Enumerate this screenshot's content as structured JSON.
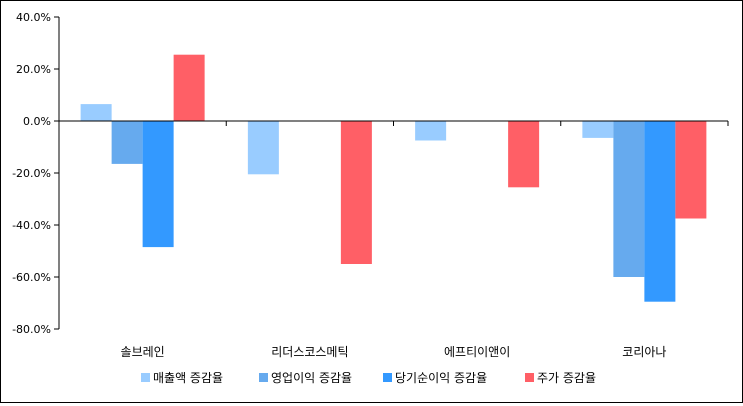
{
  "chart_data": {
    "type": "bar",
    "categories": [
      "솔브레인",
      "리더스코스메틱",
      "에프티이앤이",
      "코리아나"
    ],
    "series": [
      {
        "name": "매출액 증감율",
        "color": "#99ccff",
        "values": [
          6.5,
          -20.5,
          -7.5,
          -6.5
        ]
      },
      {
        "name": "영업이익 증감율",
        "color": "#66aaee",
        "values": [
          -16.5,
          0,
          0,
          -60.0
        ]
      },
      {
        "name": "당기순이익 증감율",
        "color": "#3399ff",
        "values": [
          -48.5,
          0,
          0,
          -69.5
        ]
      },
      {
        "name": "주가 증감율",
        "color": "#ff5f66",
        "values": [
          25.5,
          -55.0,
          -25.5,
          -37.5
        ]
      }
    ],
    "y_ticks": [
      "40.0%",
      "20.0%",
      "0.0%",
      "-20.0%",
      "-40.0%",
      "-60.0%",
      "-80.0%"
    ],
    "ylim": [
      -80,
      40
    ],
    "grid": false,
    "legend_position": "bottom"
  }
}
